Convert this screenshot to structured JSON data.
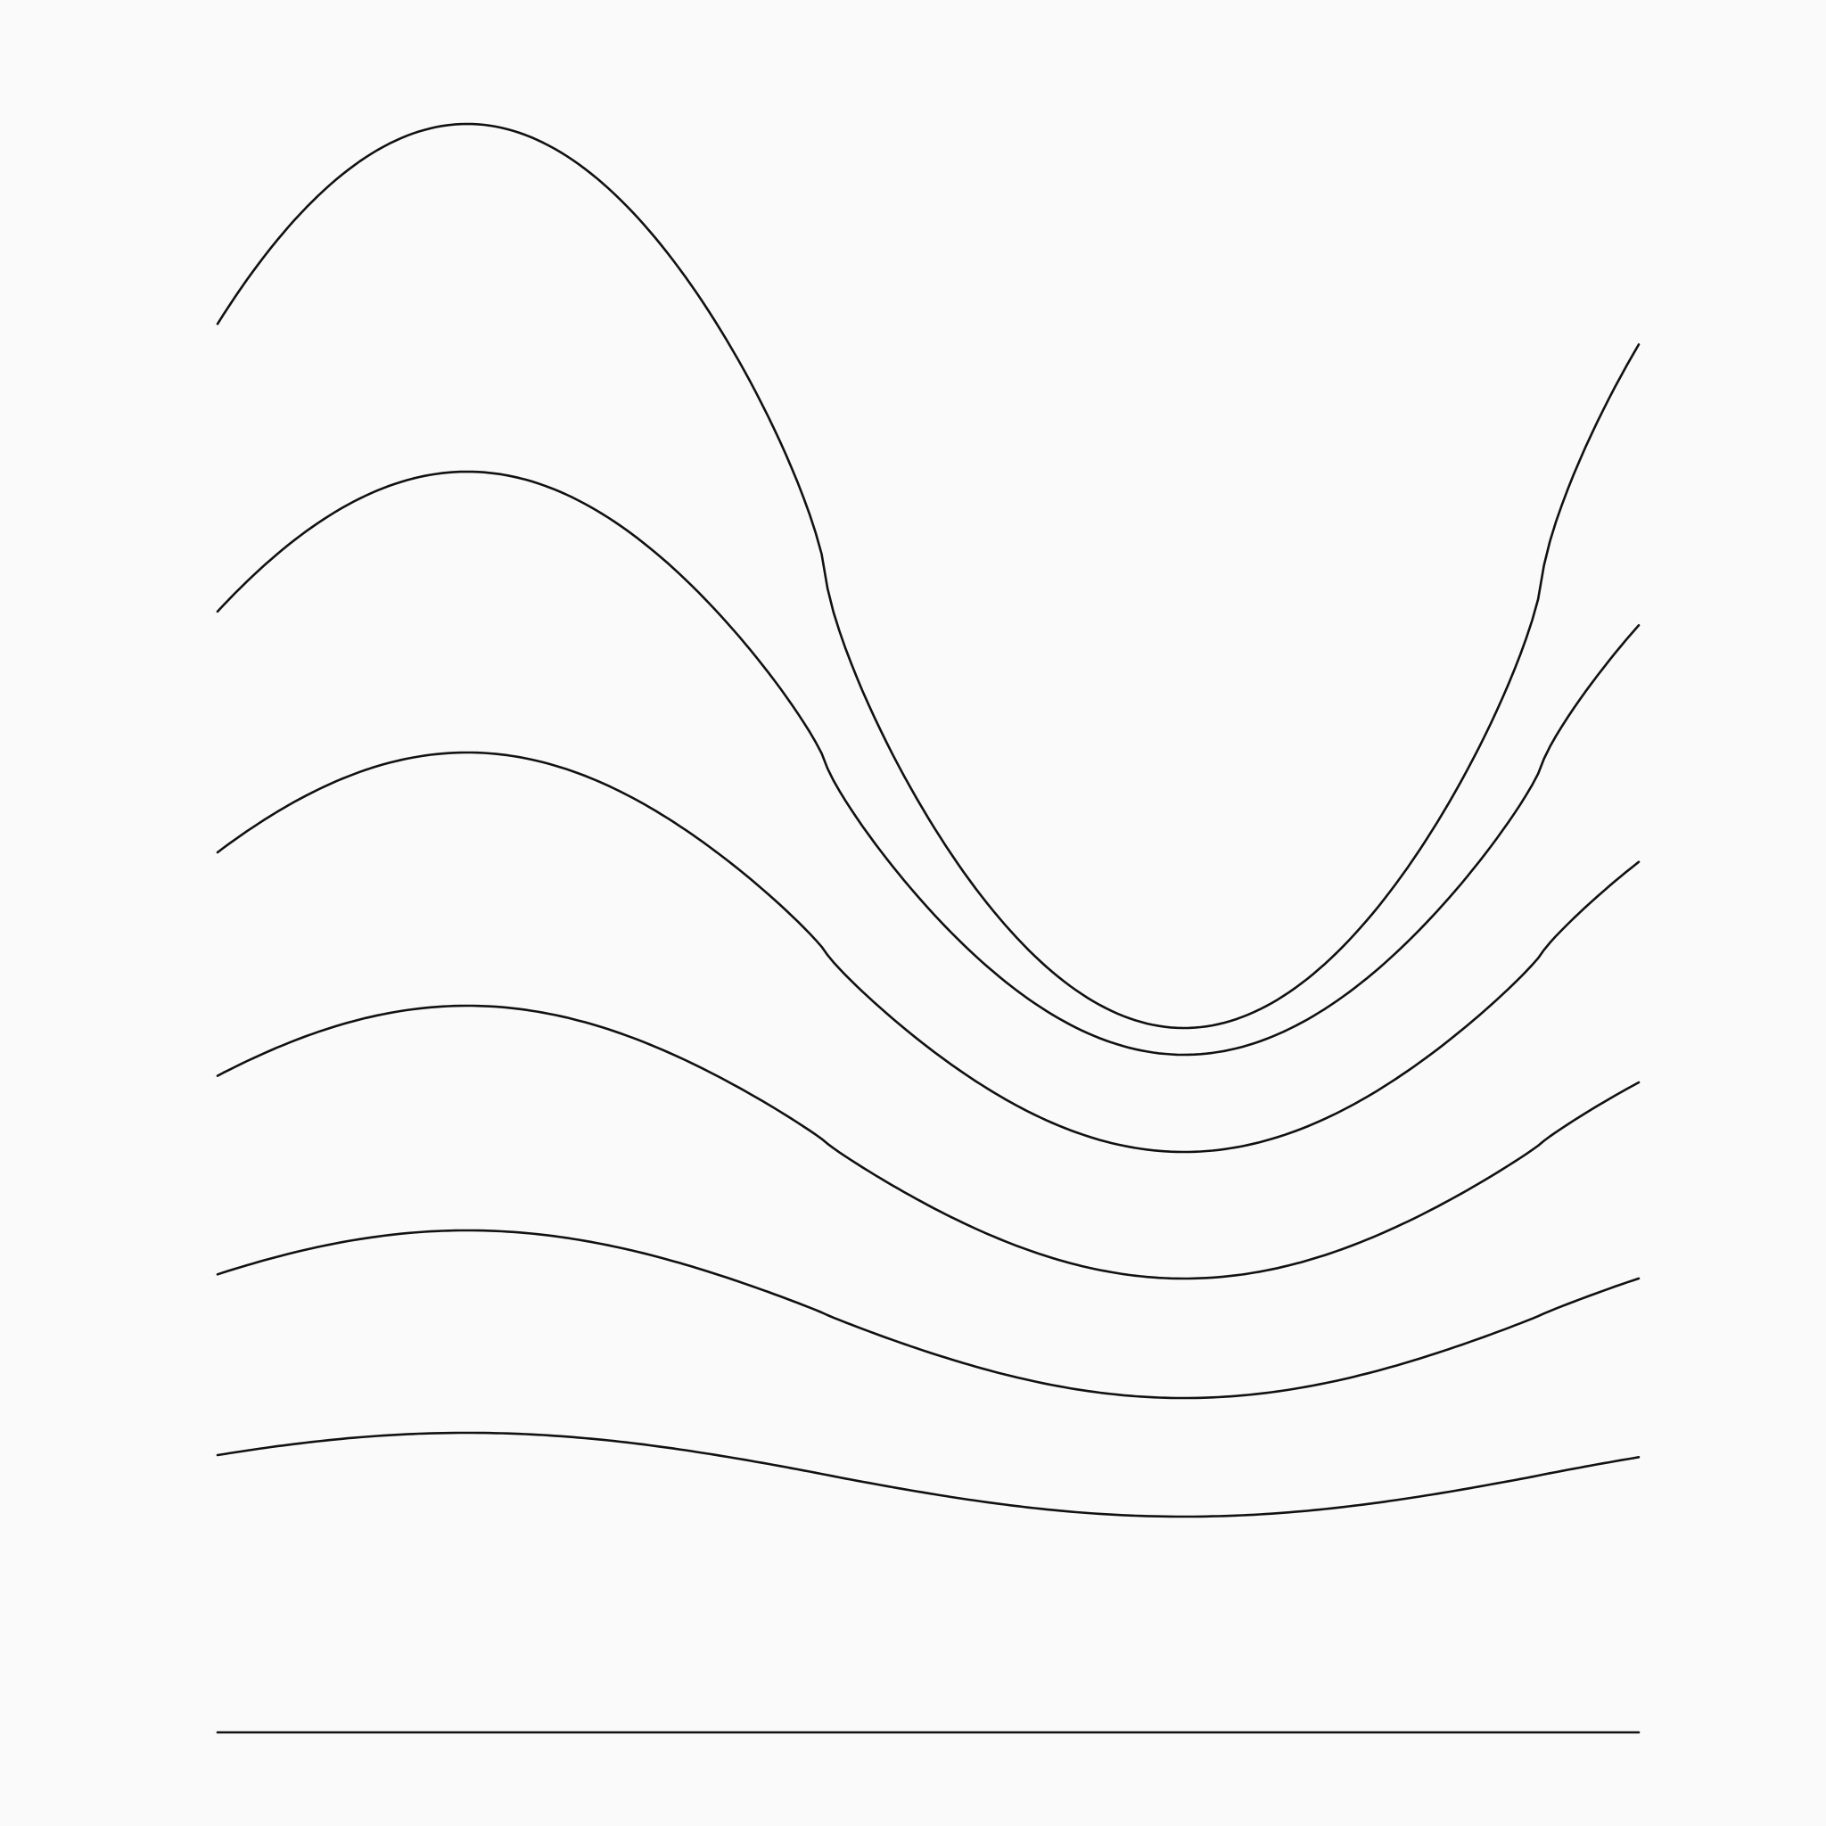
{
  "artwork": {
    "description_free": true,
    "background_color": "#fafafa",
    "stroke_color": "#111111",
    "line_count": 7,
    "waves": [
      {
        "amplitude": 1.0
      },
      {
        "amplitude": 0.6452
      },
      {
        "amplitude": 0.4427
      },
      {
        "amplitude": 0.301
      },
      {
        "amplitude": 0.1873
      },
      {
        "amplitude": 0.0936
      },
      {
        "amplitude": 0.0
      }
    ]
  }
}
